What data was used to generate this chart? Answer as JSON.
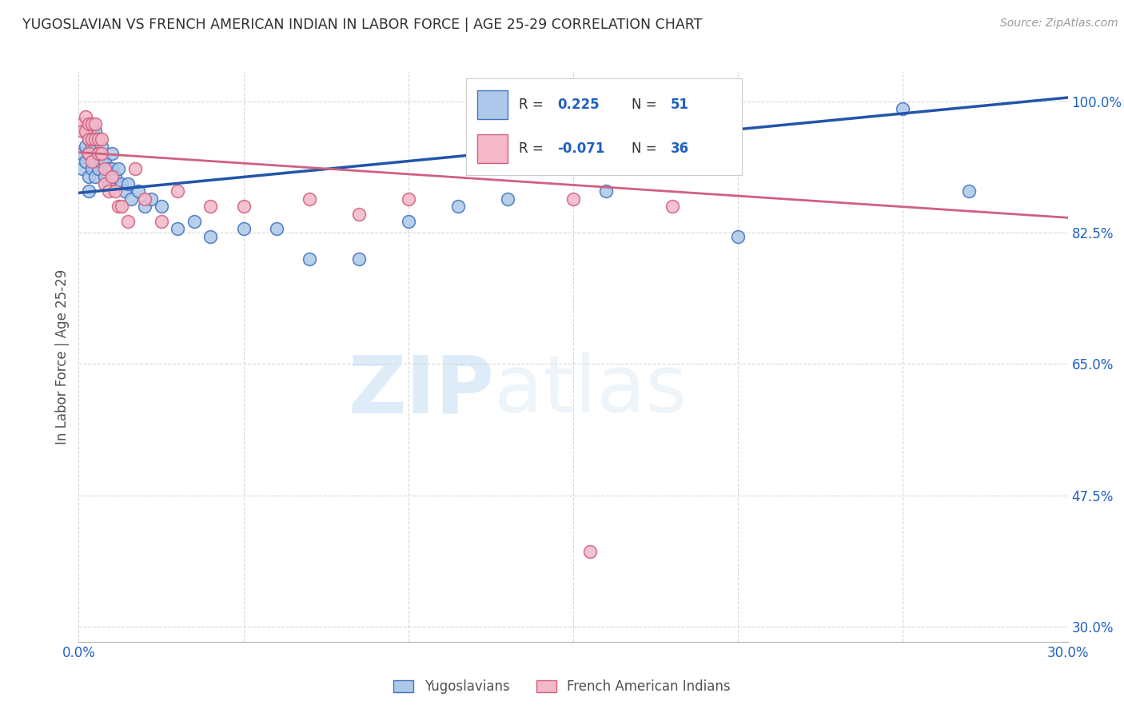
{
  "title": "YUGOSLAVIAN VS FRENCH AMERICAN INDIAN IN LABOR FORCE | AGE 25-29 CORRELATION CHART",
  "source": "Source: ZipAtlas.com",
  "ylabel": "In Labor Force | Age 25-29",
  "xlim": [
    0.0,
    0.3
  ],
  "ylim": [
    0.28,
    1.04
  ],
  "xticks": [
    0.0,
    0.05,
    0.1,
    0.15,
    0.2,
    0.25,
    0.3
  ],
  "xticklabels": [
    "0.0%",
    "",
    "",
    "",
    "",
    "",
    "30.0%"
  ],
  "ytick_positions": [
    0.3,
    0.475,
    0.65,
    0.825,
    1.0
  ],
  "ytick_labels": [
    "30.0%",
    "47.5%",
    "65.0%",
    "82.5%",
    "100.0%"
  ],
  "blue_color": "#adc8e8",
  "blue_edge_color": "#4472c4",
  "blue_line_color": "#2255aa",
  "pink_color": "#f4b8c8",
  "pink_edge_color": "#d06080",
  "pink_line_color": "#d06080",
  "blue_scatter_x": [
    0.001,
    0.001,
    0.002,
    0.002,
    0.002,
    0.003,
    0.003,
    0.003,
    0.003,
    0.004,
    0.004,
    0.004,
    0.005,
    0.005,
    0.005,
    0.005,
    0.006,
    0.006,
    0.006,
    0.007,
    0.007,
    0.008,
    0.008,
    0.009,
    0.009,
    0.01,
    0.01,
    0.011,
    0.012,
    0.013,
    0.014,
    0.015,
    0.016,
    0.018,
    0.02,
    0.022,
    0.025,
    0.03,
    0.035,
    0.04,
    0.05,
    0.06,
    0.07,
    0.085,
    0.1,
    0.115,
    0.13,
    0.16,
    0.2,
    0.25,
    0.27
  ],
  "blue_scatter_y": [
    0.93,
    0.91,
    0.96,
    0.94,
    0.92,
    0.95,
    0.93,
    0.9,
    0.88,
    0.96,
    0.94,
    0.91,
    0.96,
    0.94,
    0.92,
    0.9,
    0.95,
    0.93,
    0.91,
    0.94,
    0.92,
    0.92,
    0.9,
    0.91,
    0.89,
    0.93,
    0.91,
    0.9,
    0.91,
    0.89,
    0.88,
    0.89,
    0.87,
    0.88,
    0.86,
    0.87,
    0.86,
    0.83,
    0.84,
    0.82,
    0.83,
    0.83,
    0.79,
    0.79,
    0.84,
    0.86,
    0.87,
    0.88,
    0.82,
    0.99,
    0.88
  ],
  "pink_scatter_x": [
    0.001,
    0.001,
    0.002,
    0.002,
    0.003,
    0.003,
    0.003,
    0.004,
    0.004,
    0.004,
    0.005,
    0.005,
    0.006,
    0.006,
    0.007,
    0.007,
    0.008,
    0.008,
    0.009,
    0.01,
    0.011,
    0.012,
    0.013,
    0.015,
    0.017,
    0.02,
    0.025,
    0.03,
    0.04,
    0.05,
    0.07,
    0.085,
    0.1,
    0.15,
    0.18,
    0.155
  ],
  "pink_scatter_y": [
    0.97,
    0.96,
    0.98,
    0.96,
    0.97,
    0.95,
    0.93,
    0.97,
    0.95,
    0.92,
    0.97,
    0.95,
    0.95,
    0.93,
    0.95,
    0.93,
    0.91,
    0.89,
    0.88,
    0.9,
    0.88,
    0.86,
    0.86,
    0.84,
    0.91,
    0.87,
    0.84,
    0.88,
    0.86,
    0.86,
    0.87,
    0.85,
    0.87,
    0.87,
    0.86,
    0.4
  ],
  "blue_line_x0": 0.0,
  "blue_line_y0": 0.878,
  "blue_line_x1": 0.3,
  "blue_line_y1": 1.005,
  "pink_line_x0": 0.0,
  "pink_line_y0": 0.932,
  "pink_line_x1": 0.3,
  "pink_line_y1": 0.845,
  "watermark_zip": "ZIP",
  "watermark_atlas": "atlas",
  "background_color": "#ffffff",
  "grid_color": "#d8d8d8",
  "title_color": "#303030",
  "axis_label_color": "#505050",
  "tick_color": "#2060c0",
  "legend_text_color": "#303030",
  "legend_value_color": "#2060c0"
}
